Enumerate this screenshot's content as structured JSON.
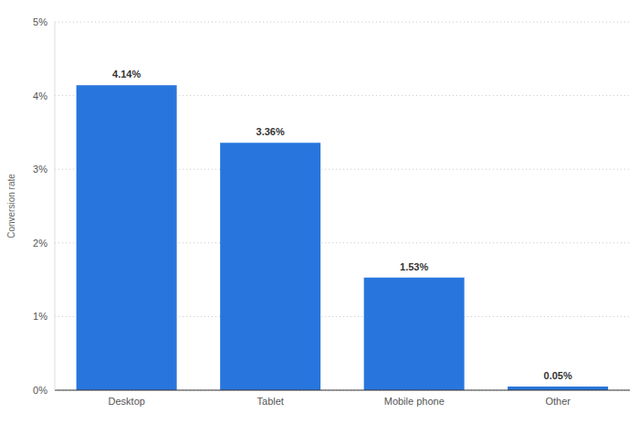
{
  "chart_data": {
    "type": "bar",
    "y_label": "Conversion rate",
    "categories": [
      "Desktop",
      "Tablet",
      "Mobile phone",
      "Other"
    ],
    "values": [
      4.14,
      3.36,
      1.53,
      0.05
    ],
    "value_labels": [
      "4.14%",
      "3.36%",
      "1.53%",
      "0.05%"
    ],
    "color": "#2876dd",
    "ylim": [
      0,
      5
    ],
    "yticks": [
      {
        "value": 0,
        "label": "0%"
      },
      {
        "value": 1,
        "label": "1%"
      },
      {
        "value": 2,
        "label": "2%"
      },
      {
        "value": 3,
        "label": "3%"
      },
      {
        "value": 4,
        "label": "4%"
      },
      {
        "value": 5,
        "label": "5%"
      }
    ],
    "grid": true,
    "data_labels": true
  }
}
